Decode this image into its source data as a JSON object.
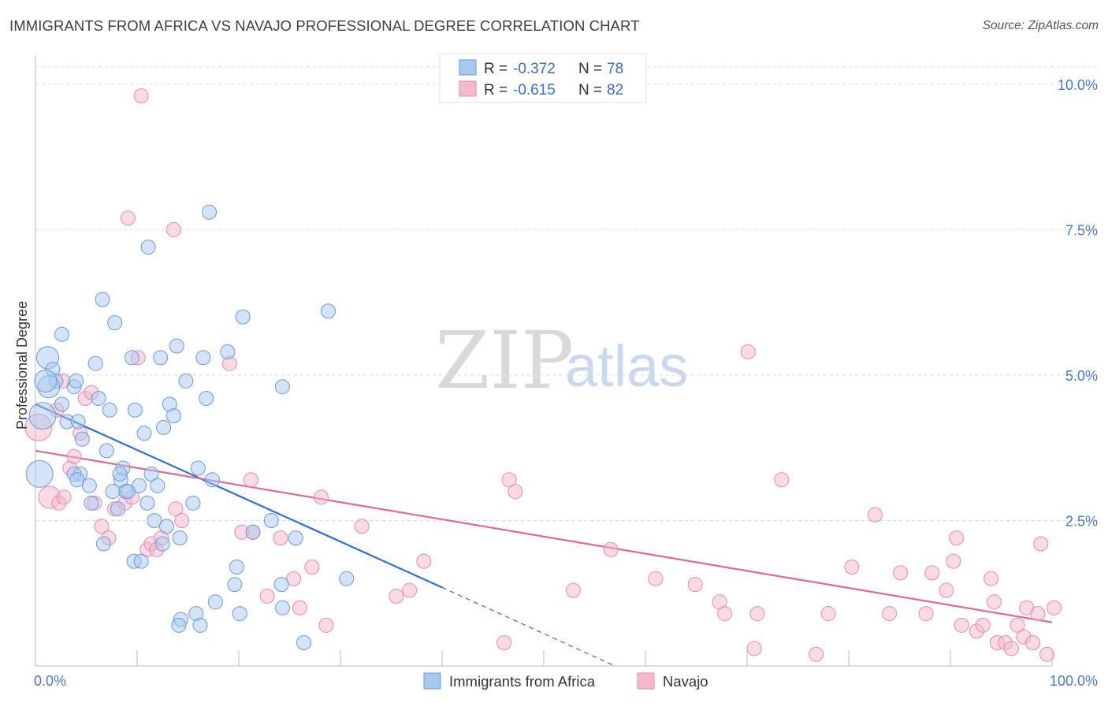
{
  "header": {
    "title": "IMMIGRANTS FROM AFRICA VS NAVAJO PROFESSIONAL DEGREE CORRELATION CHART",
    "source": "Source: ZipAtlas.com"
  },
  "watermark": {
    "zip": "ZIP",
    "atlas": "atlas"
  },
  "colors": {
    "africa_fill": "#a9c8f0",
    "africa_stroke": "#6b9ad8",
    "africa_line": "#2e6fd0",
    "navajo_fill": "#f6b8cc",
    "navajo_stroke": "#e889a8",
    "navajo_line": "#e0679a",
    "grid": "#dddddd",
    "tick_label": "#4a78c0"
  },
  "legend": {
    "rows": [
      {
        "r_label": "R = ",
        "r_value": "-0.372",
        "n_label": "N = ",
        "n_value": "78"
      },
      {
        "r_label": "R = ",
        "r_value": "-0.615",
        "n_label": "N = ",
        "n_value": "82"
      }
    ]
  },
  "bottom_legend": [
    "Immigrants from Africa",
    "Navajo"
  ],
  "chart_data": {
    "type": "scatter",
    "title": "IMMIGRANTS FROM AFRICA VS NAVAJO PROFESSIONAL DEGREE CORRELATION CHART",
    "xlabel": "",
    "ylabel": "Professional Degree",
    "xlim": [
      0,
      100
    ],
    "ylim": [
      0,
      10.5
    ],
    "x_tick_labels": [
      "0.0%",
      "100.0%"
    ],
    "y_ticks": [
      2.5,
      5.0,
      7.5,
      10.0
    ],
    "y_tick_labels": [
      "2.5%",
      "5.0%",
      "7.5%",
      "10.0%"
    ],
    "grid": true,
    "legend_position": "top-center",
    "series": [
      {
        "name": "Immigrants from Africa",
        "r": -0.372,
        "n": 78,
        "trend": {
          "x0": 0,
          "y0": 4.5,
          "x1": 40,
          "y1": 1.35,
          "dash_to_x": 57,
          "dash_to_y": 0
        },
        "points": [
          [
            1.2,
            5.3
          ],
          [
            1.7,
            5.1
          ],
          [
            2.0,
            4.9
          ],
          [
            1.3,
            4.8
          ],
          [
            2.6,
            5.7
          ],
          [
            3.8,
            4.8
          ],
          [
            4.0,
            4.9
          ],
          [
            2.6,
            4.5
          ],
          [
            3.1,
            4.2
          ],
          [
            4.2,
            4.2
          ],
          [
            4.6,
            3.9
          ],
          [
            4.4,
            3.3
          ],
          [
            3.8,
            3.3
          ],
          [
            4.1,
            3.2
          ],
          [
            5.3,
            3.1
          ],
          [
            5.5,
            2.8
          ],
          [
            5.9,
            5.2
          ],
          [
            6.2,
            4.6
          ],
          [
            6.6,
            6.3
          ],
          [
            7.0,
            3.7
          ],
          [
            7.3,
            4.4
          ],
          [
            7.8,
            5.9
          ],
          [
            7.6,
            3.0
          ],
          [
            8.1,
            2.7
          ],
          [
            8.4,
            3.2
          ],
          [
            8.6,
            3.4
          ],
          [
            8.9,
            3.0
          ],
          [
            9.5,
            5.3
          ],
          [
            9.8,
            4.4
          ],
          [
            10.2,
            3.1
          ],
          [
            10.7,
            4.0
          ],
          [
            11.1,
            7.2
          ],
          [
            11.4,
            3.3
          ],
          [
            11.7,
            2.5
          ],
          [
            12.0,
            3.1
          ],
          [
            12.3,
            5.3
          ],
          [
            12.6,
            4.1
          ],
          [
            12.9,
            2.4
          ],
          [
            13.2,
            4.5
          ],
          [
            13.6,
            4.3
          ],
          [
            13.9,
            5.5
          ],
          [
            14.2,
            2.2
          ],
          [
            14.8,
            4.9
          ],
          [
            15.5,
            2.8
          ],
          [
            16.0,
            3.4
          ],
          [
            16.5,
            5.3
          ],
          [
            16.8,
            4.6
          ],
          [
            17.1,
            7.8
          ],
          [
            17.4,
            3.2
          ],
          [
            18.9,
            5.4
          ],
          [
            20.4,
            6.0
          ],
          [
            21.4,
            2.3
          ],
          [
            23.2,
            2.5
          ],
          [
            24.3,
            4.8
          ],
          [
            25.6,
            2.2
          ],
          [
            28.8,
            6.1
          ],
          [
            30.6,
            1.5
          ],
          [
            9.7,
            1.8
          ],
          [
            10.4,
            1.8
          ],
          [
            14.3,
            0.8
          ],
          [
            14.1,
            0.7
          ],
          [
            15.8,
            0.9
          ],
          [
            16.2,
            0.7
          ],
          [
            17.7,
            1.1
          ],
          [
            19.8,
            1.7
          ],
          [
            19.6,
            1.4
          ],
          [
            20.1,
            0.9
          ],
          [
            24.2,
            1.4
          ],
          [
            24.3,
            1.0
          ],
          [
            26.4,
            0.4
          ],
          [
            0.4,
            3.3
          ],
          [
            0.7,
            4.3
          ],
          [
            1.0,
            4.9
          ],
          [
            6.7,
            2.1
          ],
          [
            12.5,
            2.1
          ],
          [
            11.0,
            2.8
          ],
          [
            9.1,
            3.0
          ],
          [
            8.3,
            3.3
          ]
        ]
      },
      {
        "name": "Navajo",
        "r": -0.615,
        "n": 82,
        "trend": {
          "x0": 0,
          "y0": 3.7,
          "x1": 100,
          "y1": 0.75
        },
        "points": [
          [
            0.3,
            4.1
          ],
          [
            2.1,
            4.4
          ],
          [
            2.7,
            4.9
          ],
          [
            3.4,
            3.4
          ],
          [
            3.8,
            3.6
          ],
          [
            4.4,
            4.0
          ],
          [
            4.9,
            4.6
          ],
          [
            5.5,
            4.7
          ],
          [
            1.4,
            2.9
          ],
          [
            2.3,
            2.8
          ],
          [
            2.8,
            2.9
          ],
          [
            5.8,
            2.8
          ],
          [
            6.5,
            2.4
          ],
          [
            7.2,
            2.2
          ],
          [
            7.8,
            2.7
          ],
          [
            8.8,
            2.8
          ],
          [
            9.5,
            2.9
          ],
          [
            10.1,
            5.3
          ],
          [
            10.4,
            9.8
          ],
          [
            11.0,
            2.0
          ],
          [
            11.4,
            2.1
          ],
          [
            11.9,
            2.0
          ],
          [
            12.4,
            2.2
          ],
          [
            13.8,
            2.7
          ],
          [
            14.4,
            2.5
          ],
          [
            9.1,
            7.7
          ],
          [
            13.6,
            7.5
          ],
          [
            21.2,
            3.2
          ],
          [
            19.1,
            5.2
          ],
          [
            20.3,
            2.3
          ],
          [
            21.4,
            2.3
          ],
          [
            22.8,
            1.2
          ],
          [
            24.1,
            2.2
          ],
          [
            25.4,
            1.5
          ],
          [
            26.0,
            1.0
          ],
          [
            27.2,
            1.7
          ],
          [
            28.1,
            2.9
          ],
          [
            28.6,
            0.7
          ],
          [
            32.1,
            2.4
          ],
          [
            35.5,
            1.2
          ],
          [
            36.8,
            1.3
          ],
          [
            38.2,
            1.8
          ],
          [
            46.6,
            3.2
          ],
          [
            47.2,
            3.0
          ],
          [
            46.1,
            0.4
          ],
          [
            52.9,
            1.3
          ],
          [
            56.6,
            2.0
          ],
          [
            61.0,
            1.5
          ],
          [
            64.9,
            1.4
          ],
          [
            67.3,
            1.1
          ],
          [
            67.8,
            0.9
          ],
          [
            70.1,
            5.4
          ],
          [
            71.0,
            0.9
          ],
          [
            70.7,
            0.3
          ],
          [
            73.4,
            3.2
          ],
          [
            76.8,
            0.2
          ],
          [
            78.0,
            0.9
          ],
          [
            80.3,
            1.7
          ],
          [
            82.6,
            2.6
          ],
          [
            84.0,
            0.9
          ],
          [
            85.1,
            1.6
          ],
          [
            87.6,
            0.9
          ],
          [
            88.2,
            1.6
          ],
          [
            89.6,
            1.3
          ],
          [
            90.3,
            1.8
          ],
          [
            90.6,
            2.2
          ],
          [
            91.1,
            0.7
          ],
          [
            92.6,
            0.6
          ],
          [
            93.2,
            0.7
          ],
          [
            94.0,
            1.5
          ],
          [
            94.3,
            1.1
          ],
          [
            94.6,
            0.4
          ],
          [
            95.4,
            0.4
          ],
          [
            96.0,
            0.3
          ],
          [
            96.6,
            0.7
          ],
          [
            97.2,
            0.5
          ],
          [
            97.5,
            1.0
          ],
          [
            98.1,
            0.4
          ],
          [
            98.6,
            0.9
          ],
          [
            98.9,
            2.1
          ],
          [
            99.5,
            0.2
          ],
          [
            100.2,
            1.0
          ]
        ]
      }
    ]
  }
}
